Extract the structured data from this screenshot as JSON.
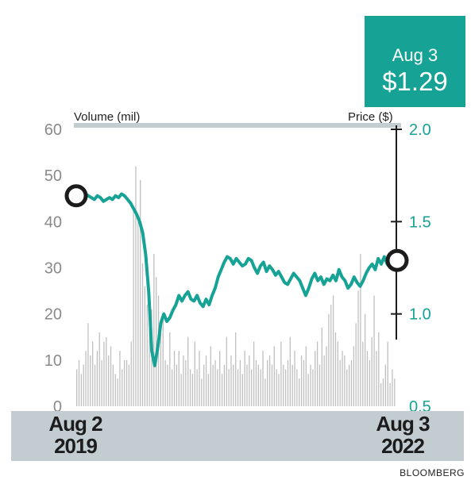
{
  "colors": {
    "price_line": "#16a396",
    "volume_bars": "#bfbfbf",
    "callout_bg": "#16a396",
    "band_bg": "#c2ccd1",
    "left_ticks": "#8a8a8a",
    "right_ticks": "#16a396"
  },
  "callout": {
    "date": "Aug 3",
    "price": "$1.29"
  },
  "axes": {
    "left_title": "Volume (mil)",
    "right_title": "Price ($)",
    "left_ticks": [
      "0",
      "10",
      "20",
      "30",
      "40",
      "50",
      "60"
    ],
    "right_ticks": [
      "0.5",
      "1.0",
      "1.5",
      "2.0"
    ]
  },
  "x_labels": {
    "start_date": "Aug 2",
    "start_year": "2019",
    "end_date": "Aug 3",
    "end_year": "2022"
  },
  "source": "BLOOMBERG",
  "chart_data": {
    "type": "line",
    "x_start": "2019-08-02",
    "x_end": "2022-08-03",
    "left_axis": {
      "label": "Volume (mil)",
      "range": [
        0,
        60
      ]
    },
    "right_axis": {
      "label": "Price ($)",
      "range": [
        0.5,
        2.0
      ]
    },
    "series": [
      {
        "name": "Price ($)",
        "axis": "right",
        "values": [
          1.64,
          1.62,
          1.63,
          1.65,
          1.64,
          1.63,
          1.62,
          1.64,
          1.63,
          1.61,
          1.62,
          1.63,
          1.62,
          1.64,
          1.63,
          1.65,
          1.64,
          1.62,
          1.6,
          1.57,
          1.54,
          1.5,
          1.44,
          1.32,
          1.12,
          0.8,
          0.72,
          0.82,
          0.95,
          1.0,
          0.96,
          0.98,
          1.02,
          1.05,
          1.1,
          1.07,
          1.1,
          1.12,
          1.08,
          1.07,
          1.1,
          1.06,
          1.04,
          1.08,
          1.05,
          1.1,
          1.14,
          1.2,
          1.24,
          1.28,
          1.31,
          1.3,
          1.27,
          1.3,
          1.28,
          1.26,
          1.27,
          1.3,
          1.29,
          1.25,
          1.22,
          1.26,
          1.28,
          1.23,
          1.26,
          1.24,
          1.21,
          1.23,
          1.2,
          1.17,
          1.16,
          1.19,
          1.22,
          1.2,
          1.18,
          1.14,
          1.1,
          1.14,
          1.19,
          1.22,
          1.18,
          1.2,
          1.16,
          1.19,
          1.18,
          1.21,
          1.18,
          1.24,
          1.2,
          1.18,
          1.14,
          1.16,
          1.2,
          1.17,
          1.15,
          1.18,
          1.22,
          1.25,
          1.27,
          1.24,
          1.3,
          1.27,
          1.31,
          1.27,
          1.25,
          1.27,
          1.29
        ],
        "last_value": 1.29
      },
      {
        "name": "Volume (mil)",
        "axis": "left",
        "type": "bar",
        "values": [
          8,
          10,
          7,
          9,
          12,
          18,
          11,
          14,
          9,
          12,
          16,
          10,
          14,
          15,
          11,
          13,
          9,
          7,
          6,
          12,
          8,
          10,
          10,
          9,
          14,
          43,
          52,
          40,
          49,
          31,
          26,
          22,
          18,
          21,
          33,
          28,
          24,
          17,
          20,
          10,
          9,
          16,
          8,
          12,
          9,
          12,
          7,
          11,
          10,
          15,
          8,
          7,
          14,
          8,
          12,
          6,
          9,
          11,
          7,
          13,
          9,
          10,
          8,
          12,
          7,
          9,
          15,
          8,
          11,
          9,
          16,
          8,
          10,
          7,
          12,
          9,
          11,
          8,
          14,
          10,
          9,
          8,
          12,
          6,
          10,
          11,
          9,
          13,
          8,
          7,
          14,
          9,
          8,
          10,
          15,
          9,
          12,
          8,
          6,
          11,
          10,
          13,
          7,
          9,
          8,
          12,
          14,
          9,
          17,
          11,
          13,
          20,
          22,
          24,
          16,
          14,
          10,
          12,
          11,
          8,
          9,
          10,
          13,
          18,
          25,
          33,
          14,
          20,
          12,
          10,
          15,
          24,
          12,
          16,
          5,
          6,
          9,
          14,
          5,
          8,
          6
        ]
      }
    ],
    "annotations": [
      {
        "x": "2019-08-02",
        "value": 1.64,
        "marker": "circle"
      },
      {
        "x": "2022-08-03",
        "value": 1.29,
        "marker": "circle",
        "label": "Aug 3 $1.29"
      }
    ]
  }
}
